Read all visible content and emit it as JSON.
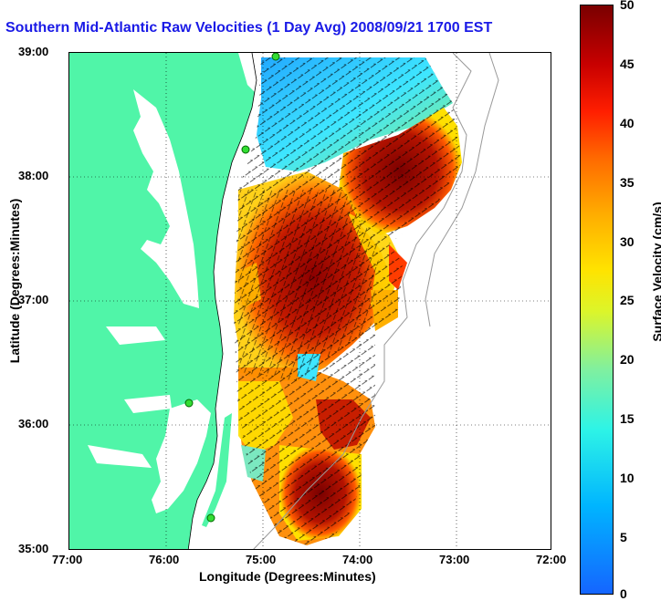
{
  "map": {
    "title": "Southern Mid-Atlantic Raw Velocities (1 Day Avg) 2008/09/21 1700 EST",
    "x_axis_title": "Longitude (Degrees:Minutes)",
    "y_axis_title": "Latitude (Degrees:Minutes)",
    "x_ticks": [
      "77:00",
      "76:00",
      "75:00",
      "74:00",
      "73:00",
      "72:00"
    ],
    "y_ticks": [
      "39:00",
      "38:00",
      "37:00",
      "36:00",
      "35:00"
    ],
    "colorbar_title": "Surface Velocity (cm/s)",
    "colorbar_ticks": [
      "50",
      "45",
      "40",
      "35",
      "30",
      "25",
      "20",
      "15",
      "10",
      "5",
      "0"
    ],
    "colors": {
      "land": "#50f5a8",
      "title": "#1a1ae6",
      "station": "#33dd33",
      "vector": "#000000"
    }
  }
}
